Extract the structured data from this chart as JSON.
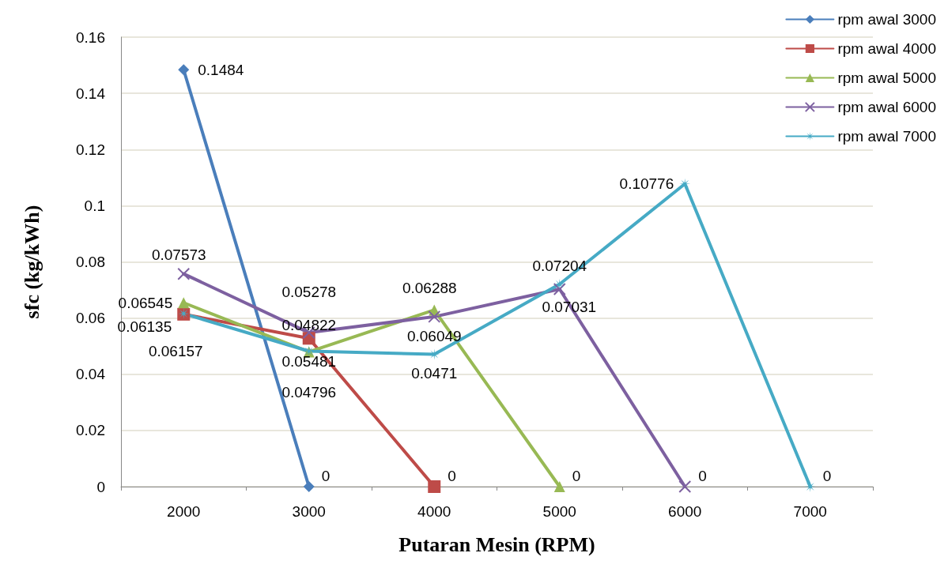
{
  "chart_data": {
    "type": "line",
    "xlabel": "Putaran Mesin (RPM)",
    "ylabel": "sfc (kg/kWh)",
    "categories": [
      "2000",
      "3000",
      "4000",
      "5000",
      "6000",
      "7000"
    ],
    "series": [
      {
        "name": "rpm awal 3000",
        "color": "#4a7ebb",
        "marker": "diamond",
        "values": [
          0.1484,
          0,
          null,
          null,
          null,
          null
        ]
      },
      {
        "name": "rpm awal 4000",
        "color": "#be4b48",
        "marker": "square",
        "values": [
          0.06135,
          0.05278,
          0,
          null,
          null,
          null
        ]
      },
      {
        "name": "rpm awal 5000",
        "color": "#98b954",
        "marker": "triangle",
        "values": [
          0.06545,
          0.04796,
          0.06288,
          0,
          null,
          null
        ]
      },
      {
        "name": "rpm awal 6000",
        "color": "#7d60a0",
        "marker": "cross",
        "values": [
          0.07573,
          0.05481,
          0.06049,
          0.07031,
          0,
          null
        ]
      },
      {
        "name": "rpm awal 7000",
        "color": "#46aac5",
        "marker": "star",
        "values": [
          0.06157,
          0.04822,
          0.0471,
          0.07204,
          0.10776,
          0
        ]
      }
    ],
    "ylim": [
      0,
      0.16
    ],
    "yticks": [
      0,
      0.02,
      0.04,
      0.06,
      0.08,
      0.1,
      0.12,
      0.14,
      0.16
    ],
    "grid": "y",
    "legend": "top right",
    "data_labels": true,
    "line_style": "solid"
  }
}
